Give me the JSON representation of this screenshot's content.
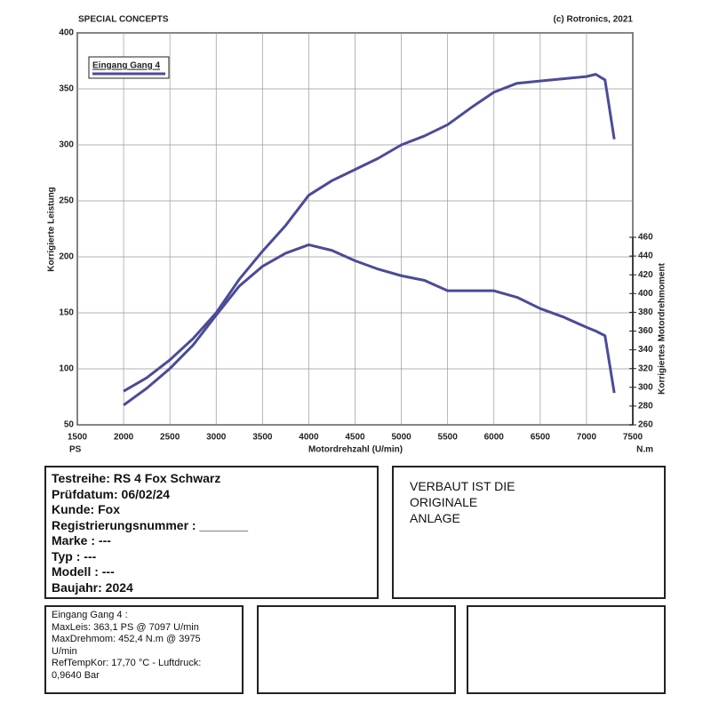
{
  "chart_data": {
    "type": "line",
    "title": "SPECIAL CONCEPTS",
    "subtitle": "(c) Rotronics, 2021",
    "xlabel": "Motordrehzahl (U/min)",
    "ylabel": "Korrigierte Leistung",
    "y2label": "Korrigiertes Motordrehmoment",
    "yunit": "PS",
    "y2unit": "N.m",
    "x": [
      2000,
      2250,
      2500,
      2750,
      3000,
      3250,
      3500,
      3750,
      4000,
      4250,
      4500,
      4750,
      5000,
      5250,
      5500,
      5750,
      6000,
      6250,
      6500,
      6750,
      7000,
      7100,
      7200,
      7300
    ],
    "series": [
      {
        "name": "Eingang Gang 4",
        "color": "#4b4b98",
        "values": [
          80,
          92,
          108,
          127,
          150,
          180,
          205,
          228,
          255,
          268,
          278,
          288,
          300,
          308,
          318,
          333,
          347,
          355,
          357,
          359,
          361,
          363,
          358,
          305
        ]
      },
      {
        "color": "#4b4b98",
        "axis": "y2",
        "values": [
          281,
          299,
          320,
          345,
          377,
          408,
          429,
          443,
          452,
          446,
          435,
          426,
          419,
          414,
          403,
          403,
          403,
          396,
          384,
          375,
          364,
          360,
          355,
          294
        ]
      }
    ],
    "xlim": [
      1500,
      7500
    ],
    "xticks": [
      1500,
      2000,
      2500,
      3000,
      3500,
      4000,
      4500,
      5000,
      5500,
      6000,
      6500,
      7000,
      7500
    ],
    "ylim": [
      50,
      400
    ],
    "yticks": [
      50,
      100,
      150,
      200,
      250,
      300,
      350,
      400
    ],
    "y2lim": [
      260,
      678
    ],
    "y2ticks": [
      260,
      280,
      300,
      320,
      340,
      360,
      380,
      400,
      420,
      440,
      460
    ],
    "grid": true
  },
  "report": {
    "lines": [
      "Testreihe: RS 4 Fox Schwarz",
      "Prüfdatum: 06/02/24",
      "Kunde: Fox",
      "Registrierungsnummer  : _______",
      "Marke  : ---",
      "Typ  : ---",
      "Modell  : ---",
      "Baujahr: 2024"
    ]
  },
  "note": {
    "lines": [
      "VERBAUT IST DIE",
      "ORIGINALE",
      "ANLAGE"
    ]
  },
  "summary": {
    "lines": [
      "Eingang Gang 4  :",
      "MaxLeis: 363,1 PS @ 7097 U/min",
      "MaxDrehmom: 452,4 N.m @ 3975",
      "U/min",
      "RefTempKor: 17,70 °C - Luftdruck:",
      "0,9640 Bar"
    ]
  }
}
